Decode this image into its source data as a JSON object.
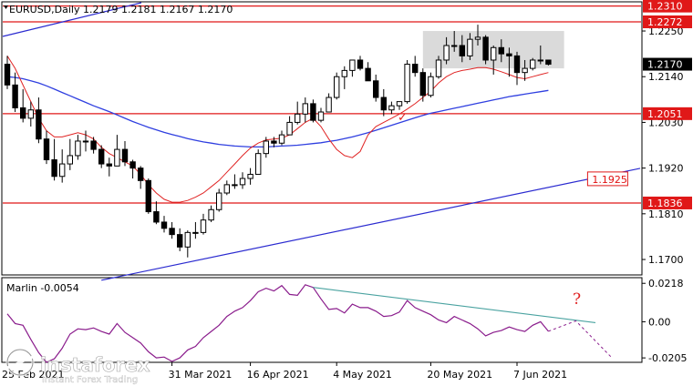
{
  "chart_data": [
    {
      "type": "candlestick",
      "header": "EURUSD,Daily  1.2179 1.2181 1.2167 1.2170",
      "ylim": [
        1.1665,
        1.2318
      ],
      "y_ticks": [
        "1.2250",
        "1.2140",
        "1.2030",
        "1.1920",
        "1.1810",
        "1.1700"
      ],
      "x_labels": [
        "25 Feb 2021",
        "31 Mar 2021",
        "16 Apr 2021",
        "4 May 2021",
        "20 May 2021",
        "7 Jun 2021"
      ],
      "price_levels": [
        {
          "label": "1.2310",
          "style": "filled"
        },
        {
          "label": "1.2272",
          "style": "filled"
        },
        {
          "label": "1.2170",
          "style": "current"
        },
        {
          "label": "1.2051",
          "style": "filled"
        },
        {
          "label": "1.1925",
          "style": "outlined"
        },
        {
          "label": "1.1836",
          "style": "filled"
        }
      ],
      "series": [
        {
          "name": "open",
          "values": [
            1.217,
            1.212,
            1.2065,
            1.204,
            1.206,
            1.199,
            1.194,
            1.19,
            1.193,
            1.195,
            1.1985,
            1.1985,
            1.1965,
            1.193,
            1.1925,
            1.1965,
            1.1935,
            1.192,
            1.189,
            1.1815,
            1.179,
            1.1775,
            1.176,
            1.173,
            1.1765,
            1.1765,
            1.1795,
            1.182,
            1.186,
            1.188,
            1.188,
            1.1895,
            1.1905,
            1.1955,
            1.1985,
            1.198,
            1.2,
            1.203,
            1.205,
            1.2075,
            1.2035,
            1.2055,
            1.209,
            1.214,
            1.2155,
            1.218,
            1.216,
            1.213,
            1.209,
            1.206,
            1.207,
            1.208,
            1.217,
            1.215,
            1.2095,
            1.214,
            1.218,
            1.2215,
            1.2215,
            1.219,
            1.223,
            1.2235,
            1.218,
            1.221,
            1.2195,
            1.219,
            1.215,
            1.216,
            1.218,
            1.218
          ]
        },
        {
          "name": "high",
          "values": [
            1.219,
            1.215,
            1.211,
            1.208,
            1.209,
            1.201,
            1.199,
            1.1965,
            1.199,
            1.2,
            1.201,
            1.1995,
            1.1975,
            1.1945,
            1.2,
            1.1985,
            1.194,
            1.1925,
            1.1895,
            1.184,
            1.1805,
            1.179,
            1.1775,
            1.177,
            1.179,
            1.181,
            1.183,
            1.187,
            1.189,
            1.1905,
            1.191,
            1.192,
            1.1965,
            1.1995,
            1.1995,
            1.201,
            1.2045,
            1.208,
            1.209,
            1.2085,
            1.2065,
            1.21,
            1.215,
            1.2165,
            1.217,
            1.219,
            1.2175,
            1.2145,
            1.211,
            1.208,
            1.208,
            1.218,
            1.219,
            1.216,
            1.215,
            1.219,
            1.2235,
            1.225,
            1.224,
            1.2245,
            1.2265,
            1.224,
            1.2215,
            1.223,
            1.221,
            1.22,
            1.218,
            1.2185,
            1.2215,
            1.218
          ]
        },
        {
          "name": "low",
          "values": [
            1.211,
            1.2055,
            1.203,
            1.202,
            1.198,
            1.193,
            1.189,
            1.1885,
            1.1915,
            1.194,
            1.196,
            1.1955,
            1.192,
            1.19,
            1.1925,
            1.1925,
            1.1895,
            1.187,
            1.181,
            1.1785,
            1.1765,
            1.175,
            1.172,
            1.1705,
            1.175,
            1.176,
            1.179,
            1.1815,
            1.1855,
            1.187,
            1.187,
            1.188,
            1.1905,
            1.1945,
            1.197,
            1.1975,
            1.2,
            1.2025,
            1.203,
            1.203,
            1.203,
            1.2055,
            1.2085,
            1.211,
            1.214,
            1.2155,
            1.213,
            1.208,
            1.2045,
            1.205,
            1.206,
            1.2075,
            1.214,
            1.208,
            1.209,
            1.2135,
            1.217,
            1.22,
            1.2175,
            1.218,
            1.2215,
            1.217,
            1.2145,
            1.2175,
            1.214,
            1.212,
            1.213,
            1.2155,
            1.217,
            1.2167
          ]
        },
        {
          "name": "close",
          "values": [
            1.212,
            1.2065,
            1.204,
            1.206,
            1.199,
            1.194,
            1.19,
            1.193,
            1.195,
            1.1985,
            1.1985,
            1.1965,
            1.193,
            1.1925,
            1.1965,
            1.1935,
            1.192,
            1.189,
            1.1815,
            1.179,
            1.1775,
            1.176,
            1.173,
            1.1765,
            1.1765,
            1.1795,
            1.182,
            1.186,
            1.188,
            1.188,
            1.1895,
            1.1905,
            1.1955,
            1.1985,
            1.198,
            1.2,
            1.203,
            1.205,
            1.2075,
            1.2035,
            1.2055,
            1.209,
            1.214,
            1.2155,
            1.218,
            1.216,
            1.213,
            1.209,
            1.206,
            1.207,
            1.208,
            1.217,
            1.215,
            1.2095,
            1.214,
            1.218,
            1.2215,
            1.2215,
            1.219,
            1.223,
            1.2235,
            1.218,
            1.221,
            1.2195,
            1.219,
            1.215,
            1.216,
            1.218,
            1.218,
            1.217
          ]
        },
        {
          "name": "blue_ma",
          "values": [
            1.214,
            1.2138,
            1.2135,
            1.213,
            1.2125,
            1.2118,
            1.211,
            1.2102,
            1.2094,
            1.2086,
            1.2078,
            1.207,
            1.2063,
            1.2056,
            1.2048,
            1.204,
            1.2032,
            1.2025,
            1.2018,
            1.2012,
            1.2006,
            1.2001,
            1.1996,
            1.1991,
            1.1987,
            1.1983,
            1.198,
            1.1977,
            1.1975,
            1.1973,
            1.1972,
            1.1971,
            1.1971,
            1.1971,
            1.1972,
            1.1973,
            1.1974,
            1.1975,
            1.1977,
            1.1979,
            1.1981,
            1.1984,
            1.1987,
            1.1991,
            1.1995,
            1.2,
            1.2005,
            1.2011,
            1.2017,
            1.2023,
            1.2029,
            1.2035,
            1.2041,
            1.2047,
            1.2052,
            1.2056,
            1.206,
            1.2064,
            1.2068,
            1.2072,
            1.2076,
            1.208,
            1.2084,
            1.2088,
            1.2092,
            1.2095,
            1.2098,
            1.2101,
            1.2104,
            1.2107
          ]
        },
        {
          "name": "red_ma",
          "values": [
            1.219,
            1.216,
            1.212,
            1.208,
            1.204,
            1.201,
            1.1995,
            1.1995,
            1.2,
            1.2005,
            1.2,
            1.199,
            1.197,
            1.1955,
            1.1945,
            1.1935,
            1.1925,
            1.1905,
            1.188,
            1.186,
            1.1845,
            1.1838,
            1.1838,
            1.1842,
            1.185,
            1.186,
            1.1875,
            1.189,
            1.191,
            1.193,
            1.195,
            1.1968,
            1.198,
            1.1988,
            1.199,
            1.1992,
            1.2,
            1.2015,
            1.203,
            1.204,
            1.202,
            1.199,
            1.1965,
            1.195,
            1.1945,
            1.196,
            1.2,
            1.202,
            1.203,
            1.204,
            1.205,
            1.2062,
            1.2075,
            1.209,
            1.2105,
            1.2125,
            1.214,
            1.215,
            1.2155,
            1.2158,
            1.2162,
            1.2162,
            1.2158,
            1.2152,
            1.2145,
            1.2138,
            1.2135,
            1.214,
            1.2145,
            1.215
          ]
        }
      ]
    },
    {
      "type": "line",
      "header": "Marlin -0.0054",
      "ylim": [
        -0.0225,
        0.0245
      ],
      "y_ticks": [
        "0.0218",
        "0.00",
        "-0.0205"
      ],
      "series": [
        {
          "name": "Marlin",
          "values": [
            0.0045,
            -0.001,
            -0.002,
            -0.01,
            -0.0175,
            -0.023,
            -0.021,
            -0.015,
            -0.007,
            -0.004,
            -0.0045,
            -0.0035,
            -0.0055,
            -0.007,
            -0.001,
            -0.006,
            -0.009,
            -0.012,
            -0.017,
            -0.0205,
            -0.02,
            -0.0225,
            -0.0205,
            -0.016,
            -0.014,
            -0.009,
            -0.0055,
            -0.002,
            0.003,
            0.006,
            0.008,
            0.012,
            0.017,
            0.019,
            0.0175,
            0.0205,
            0.0155,
            0.015,
            0.021,
            0.0195,
            0.013,
            0.007,
            0.0075,
            0.005,
            0.01,
            0.008,
            0.008,
            0.006,
            0.003,
            0.0035,
            0.0055,
            0.012,
            0.008,
            0.006,
            0.004,
            0.001,
            -0.0005,
            0.003,
            0.001,
            -0.001,
            -0.004,
            -0.008,
            -0.006,
            -0.005,
            -0.003,
            -0.0045,
            -0.0055,
            -0.002,
            0.0,
            -0.0054
          ]
        }
      ]
    }
  ],
  "annotations": {
    "question": "?",
    "check": "✓"
  },
  "watermark": {
    "brand": "instaforex",
    "tagline": "Instant Forex Trading"
  }
}
